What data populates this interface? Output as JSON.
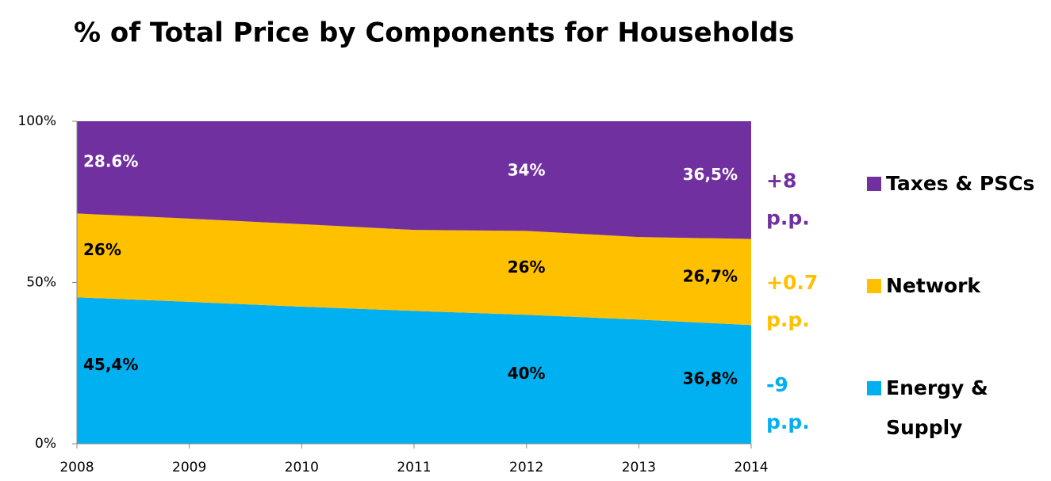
{
  "chart_data": {
    "type": "stacked_area",
    "title": "% of Total Price by Components for Households",
    "x": [
      2008,
      2009,
      2010,
      2011,
      2012,
      2013,
      2014
    ],
    "xlim": [
      2008,
      2014
    ],
    "xticks": [
      2008,
      2009,
      2010,
      2011,
      2012,
      2013,
      2014
    ],
    "ylim": [
      0,
      100
    ],
    "yticks": [
      {
        "value": 0,
        "label": "0%"
      },
      {
        "value": 50,
        "label": "50%"
      },
      {
        "value": 100,
        "label": "100%"
      }
    ],
    "grid": false,
    "legend": "right",
    "series": [
      {
        "name": "Energy & Supply",
        "color": "#00b0f0",
        "values": [
          45.4,
          44,
          42.5,
          41.2,
          40,
          38.5,
          36.8
        ],
        "value_labels": [
          "45,4%",
          null,
          null,
          null,
          "40%",
          null,
          "36,8%"
        ],
        "change": [
          "-9",
          "p.p."
        ]
      },
      {
        "name": "Network",
        "color": "#ffc000",
        "values": [
          26,
          25.8,
          25.6,
          25.1,
          26,
          25.6,
          26.7
        ],
        "value_labels": [
          "26%",
          null,
          null,
          null,
          "26%",
          null,
          "26,7%"
        ],
        "change": [
          "+0.7",
          "p.p."
        ]
      },
      {
        "name": "Taxes & PSCs",
        "color": "#7030a0",
        "values": [
          28.6,
          30.2,
          31.9,
          33.7,
          34,
          35.9,
          36.5
        ],
        "value_labels": [
          "28.6%",
          null,
          null,
          null,
          "34%",
          null,
          "36,5%"
        ],
        "change": [
          "+8",
          "p.p."
        ]
      }
    ]
  }
}
